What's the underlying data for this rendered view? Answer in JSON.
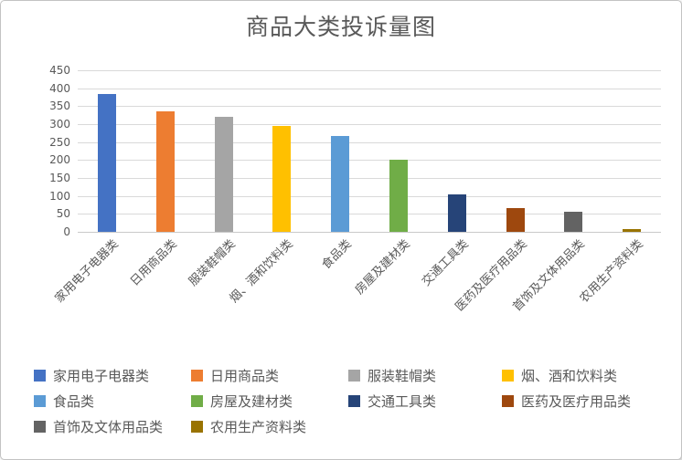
{
  "chart_data": {
    "type": "bar",
    "title": "商品大类投诉量图",
    "categories": [
      "家用电子电器类",
      "日用商品类",
      "服装鞋帽类",
      "烟、酒和饮料类",
      "食品类",
      "房屋及建材类",
      "交通工具类",
      "医药及医疗用品类",
      "首饰及文体用品类",
      "农用生产资料类"
    ],
    "values": [
      383,
      335,
      320,
      295,
      266,
      200,
      104,
      65,
      56,
      7
    ],
    "colors": [
      "#4472c4",
      "#ed7d31",
      "#a5a5a5",
      "#ffc000",
      "#5b9bd5",
      "#70ad47",
      "#264478",
      "#9e480e",
      "#636363",
      "#997300"
    ],
    "xlabel": "",
    "ylabel": "",
    "ylim": [
      0,
      450
    ],
    "ytick_step": 50,
    "grid": true,
    "legend_position": "bottom",
    "text_color": "#595959",
    "gridline_color": "#d9d9d9"
  }
}
